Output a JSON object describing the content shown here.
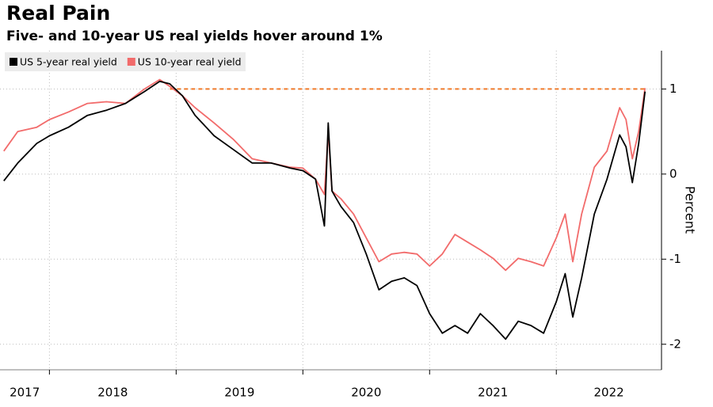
{
  "chart_data": {
    "type": "line",
    "title": "Real Pain",
    "subtitle": "Five- and 10-year US real yields hover around 1%",
    "y_axis_label": "Percent",
    "x": [
      2017.64,
      2017.75,
      2017.9,
      2018.0,
      2018.15,
      2018.3,
      2018.45,
      2018.6,
      2018.75,
      2018.87,
      2018.95,
      2019.05,
      2019.15,
      2019.3,
      2019.45,
      2019.6,
      2019.75,
      2019.9,
      2020.0,
      2020.1,
      2020.17,
      2020.2,
      2020.23,
      2020.3,
      2020.4,
      2020.5,
      2020.6,
      2020.7,
      2020.8,
      2020.9,
      2021.0,
      2021.1,
      2021.2,
      2021.3,
      2021.4,
      2021.5,
      2021.6,
      2021.7,
      2021.8,
      2021.9,
      2022.0,
      2022.07,
      2022.13,
      2022.2,
      2022.3,
      2022.4,
      2022.5,
      2022.55,
      2022.6,
      2022.65,
      2022.7
    ],
    "series": [
      {
        "name": "US 5-year real yield",
        "color": "#000000",
        "values": [
          -0.08,
          0.13,
          0.36,
          0.45,
          0.55,
          0.69,
          0.75,
          0.83,
          0.97,
          1.09,
          1.06,
          0.92,
          0.69,
          0.45,
          0.29,
          0.13,
          0.13,
          0.07,
          0.04,
          -0.06,
          -0.61,
          0.6,
          -0.2,
          -0.38,
          -0.57,
          -0.94,
          -1.36,
          -1.26,
          -1.22,
          -1.31,
          -1.64,
          -1.87,
          -1.78,
          -1.87,
          -1.64,
          -1.78,
          -1.94,
          -1.73,
          -1.78,
          -1.87,
          -1.5,
          -1.17,
          -1.68,
          -1.22,
          -0.47,
          -0.06,
          0.46,
          0.32,
          -0.1,
          0.36,
          0.97
        ]
      },
      {
        "name": "US 10-year real yield",
        "color": "#f26b6b",
        "values": [
          0.27,
          0.5,
          0.55,
          0.64,
          0.73,
          0.83,
          0.85,
          0.83,
          1.0,
          1.11,
          1.03,
          0.92,
          0.78,
          0.6,
          0.41,
          0.18,
          0.13,
          0.08,
          0.07,
          -0.06,
          -0.24,
          0.5,
          -0.2,
          -0.29,
          -0.47,
          -0.75,
          -1.03,
          -0.94,
          -0.92,
          -0.94,
          -1.08,
          -0.94,
          -0.71,
          -0.8,
          -0.89,
          -0.99,
          -1.13,
          -0.99,
          -1.03,
          -1.08,
          -0.75,
          -0.47,
          -1.03,
          -0.47,
          0.08,
          0.27,
          0.78,
          0.64,
          0.18,
          0.5,
          1.01
        ]
      }
    ],
    "reference_line": {
      "value": 1,
      "x": [
        2018.95,
        2022.7
      ],
      "color": "#f07a2a"
    },
    "xlim": [
      2017.61,
      2022.83
    ],
    "xticks": [
      2017,
      2018,
      2019,
      2020,
      2021,
      2022
    ],
    "ylim": [
      -2.3,
      1.45
    ],
    "yticks": [
      -2,
      -1,
      0,
      1
    ],
    "grid": true,
    "legend": "top-left"
  }
}
